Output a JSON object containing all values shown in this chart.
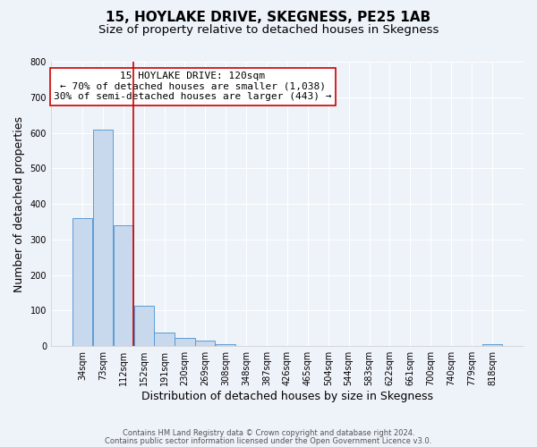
{
  "title": "15, HOYLAKE DRIVE, SKEGNESS, PE25 1AB",
  "subtitle": "Size of property relative to detached houses in Skegness",
  "xlabel": "Distribution of detached houses by size in Skegness",
  "ylabel": "Number of detached properties",
  "bar_color": "#c8d9ed",
  "bar_edge_color": "#5b9bd5",
  "categories": [
    "34sqm",
    "73sqm",
    "112sqm",
    "152sqm",
    "191sqm",
    "230sqm",
    "269sqm",
    "308sqm",
    "348sqm",
    "387sqm",
    "426sqm",
    "465sqm",
    "504sqm",
    "544sqm",
    "583sqm",
    "622sqm",
    "661sqm",
    "700sqm",
    "740sqm",
    "779sqm",
    "818sqm"
  ],
  "values": [
    360,
    610,
    340,
    113,
    38,
    22,
    15,
    5,
    0,
    0,
    0,
    0,
    0,
    0,
    0,
    0,
    0,
    0,
    0,
    0,
    5
  ],
  "ylim": [
    0,
    800
  ],
  "yticks": [
    0,
    100,
    200,
    300,
    400,
    500,
    600,
    700,
    800
  ],
  "vline_color": "#cc0000",
  "vline_index": 2.5,
  "annotation_title": "15 HOYLAKE DRIVE: 120sqm",
  "annotation_line2": "← 70% of detached houses are smaller (1,038)",
  "annotation_line3": "30% of semi-detached houses are larger (443) →",
  "annotation_box_color": "#ffffff",
  "annotation_box_edge": "#cc0000",
  "footer_line1": "Contains HM Land Registry data © Crown copyright and database right 2024.",
  "footer_line2": "Contains public sector information licensed under the Open Government Licence v3.0.",
  "background_color": "#eef2f9",
  "grid_color": "#ffffff",
  "title_fontsize": 11,
  "subtitle_fontsize": 9.5,
  "tick_fontsize": 7,
  "ylabel_fontsize": 9,
  "xlabel_fontsize": 9,
  "annotation_fontsize": 8,
  "footer_fontsize": 6
}
